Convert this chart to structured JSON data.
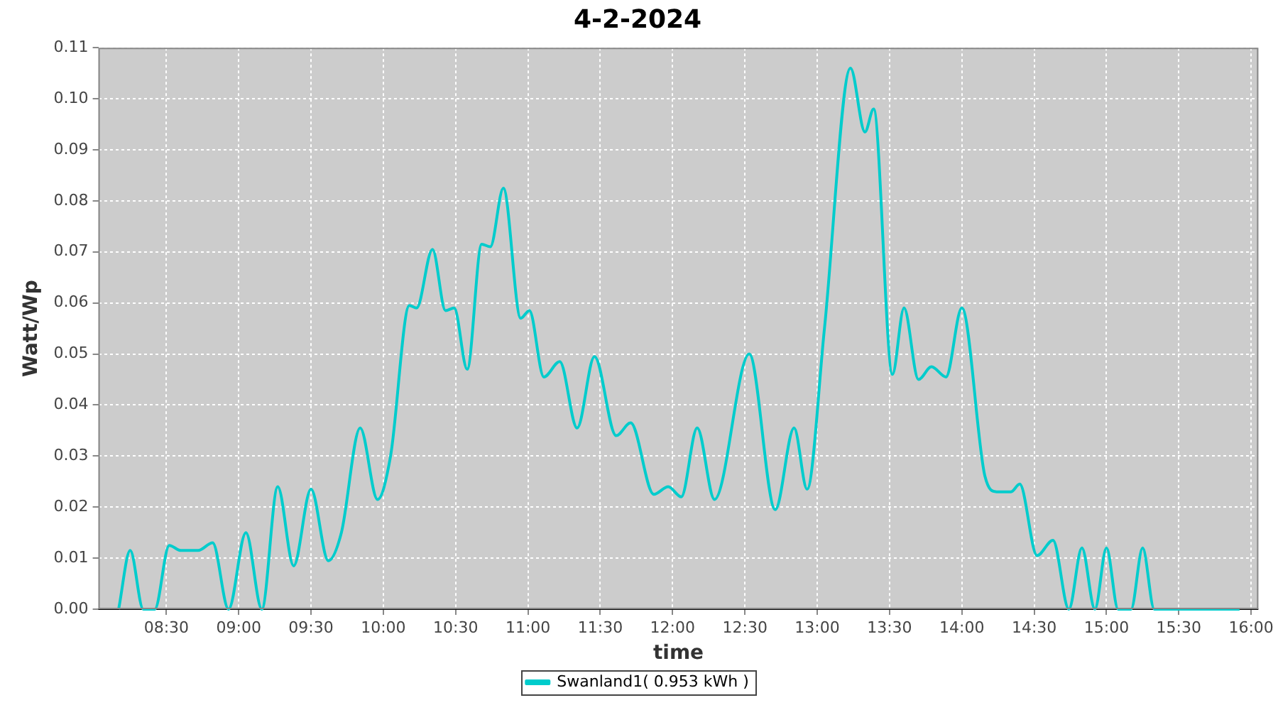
{
  "chart_data": {
    "type": "line",
    "title": "4-2-2024",
    "xlabel": "time",
    "ylabel": "Watt/Wp",
    "xlim": [
      8.03,
      16.05
    ],
    "xticks": [
      {
        "value": 8.5,
        "label": "08:30"
      },
      {
        "value": 9,
        "label": "09:00"
      },
      {
        "value": 9.5,
        "label": "09:30"
      },
      {
        "value": 10,
        "label": "10:00"
      },
      {
        "value": 10.5,
        "label": "10:30"
      },
      {
        "value": 11,
        "label": "11:00"
      },
      {
        "value": 11.5,
        "label": "11:30"
      },
      {
        "value": 12,
        "label": "12:00"
      },
      {
        "value": 12.5,
        "label": "12:30"
      },
      {
        "value": 13,
        "label": "13:00"
      },
      {
        "value": 13.5,
        "label": "13:30"
      },
      {
        "value": 14,
        "label": "14:00"
      },
      {
        "value": 14.5,
        "label": "14:30"
      },
      {
        "value": 15,
        "label": "15:00"
      },
      {
        "value": 15.5,
        "label": "15:30"
      },
      {
        "value": 16,
        "label": "16:00"
      }
    ],
    "ylim": [
      0,
      0.11
    ],
    "yticks": [
      {
        "value": 0,
        "label": "0.00"
      },
      {
        "value": 0.01,
        "label": "0.01"
      },
      {
        "value": 0.02,
        "label": "0.02"
      },
      {
        "value": 0.03,
        "label": "0.03"
      },
      {
        "value": 0.04,
        "label": "0.04"
      },
      {
        "value": 0.05,
        "label": "0.05"
      },
      {
        "value": 0.06,
        "label": "0.06"
      },
      {
        "value": 0.07,
        "label": "0.07"
      },
      {
        "value": 0.08,
        "label": "0.08"
      },
      {
        "value": 0.09,
        "label": "0.09"
      },
      {
        "value": 0.1,
        "label": "0.10"
      },
      {
        "value": 0.11,
        "label": "0.11"
      }
    ],
    "x": [
      8.17,
      8.25,
      8.34,
      8.42,
      8.52,
      8.6,
      8.72,
      8.82,
      8.93,
      9.05,
      9.16,
      9.27,
      9.38,
      9.5,
      9.62,
      9.71,
      9.84,
      9.96,
      10.05,
      10.18,
      10.23,
      10.34,
      10.43,
      10.49,
      10.58,
      10.68,
      10.74,
      10.83,
      10.95,
      11.01,
      11.11,
      11.22,
      11.34,
      11.46,
      11.61,
      11.71,
      11.87,
      11.97,
      12.06,
      12.17,
      12.29,
      12.53,
      12.71,
      12.84,
      12.93,
      13.05,
      13.23,
      13.33,
      13.39,
      13.52,
      13.6,
      13.7,
      13.79,
      13.89,
      14.0,
      14.16,
      14.24,
      14.34,
      14.4,
      14.52,
      14.63,
      14.74,
      14.83,
      14.92,
      15.0,
      15.08,
      15.17,
      15.25,
      15.33,
      15.42,
      15.92
    ],
    "series": [
      {
        "name": "Swanland1( 0.953 kWh )",
        "color": "#00cccc",
        "values": [
          0,
          0.0115,
          0,
          0,
          0.0125,
          0.0115,
          0.0115,
          0.013,
          0,
          0.015,
          0,
          0.024,
          0.0085,
          0.0235,
          0.0095,
          0.015,
          0.0355,
          0.0215,
          0.03,
          0.0595,
          0.059,
          0.0705,
          0.0585,
          0.059,
          0.047,
          0.0715,
          0.071,
          0.0825,
          0.057,
          0.0585,
          0.0455,
          0.0485,
          0.0355,
          0.0495,
          0.034,
          0.0365,
          0.0225,
          0.024,
          0.022,
          0.0355,
          0.0215,
          0.05,
          0.0195,
          0.0355,
          0.0235,
          0.055,
          0.106,
          0.0935,
          0.098,
          0.046,
          0.059,
          0.045,
          0.0475,
          0.0455,
          0.059,
          0.026,
          0.023,
          0.023,
          0.0245,
          0.0105,
          0.0135,
          0,
          0.012,
          0,
          0.012,
          0,
          0,
          0.012,
          0,
          0,
          0
        ]
      }
    ],
    "grid": true,
    "legend": "bottom",
    "marker": "none",
    "line_style": "solid"
  }
}
